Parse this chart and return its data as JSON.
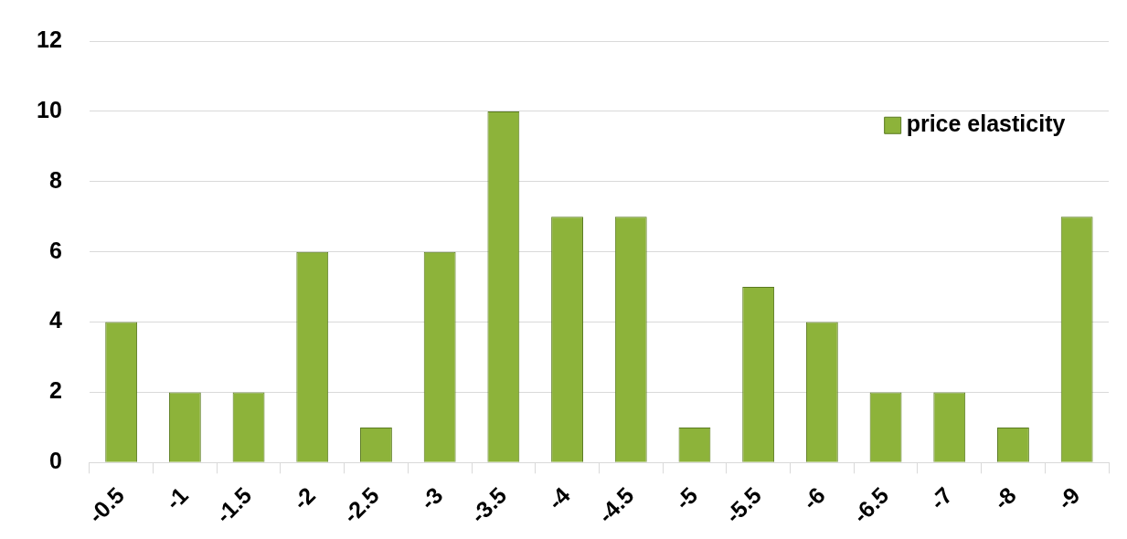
{
  "chart_data": {
    "type": "bar",
    "categories": [
      "-0.5",
      "-1",
      "-1.5",
      "-2",
      "-2.5",
      "-3",
      "-3.5",
      "-4",
      "-4.5",
      "-5",
      "-5.5",
      "-6",
      "-6.5",
      "-7",
      "-8",
      "-9"
    ],
    "series": [
      {
        "name": "price elasticity",
        "color": "#8db33a",
        "values": [
          4,
          2,
          2,
          6,
          1,
          6,
          10,
          7,
          7,
          1,
          5,
          4,
          2,
          2,
          1,
          7
        ]
      }
    ],
    "ylim": [
      0,
      12
    ],
    "yticks": [
      0,
      2,
      4,
      6,
      8,
      10,
      12
    ],
    "grid": "y",
    "legend": "top right"
  }
}
